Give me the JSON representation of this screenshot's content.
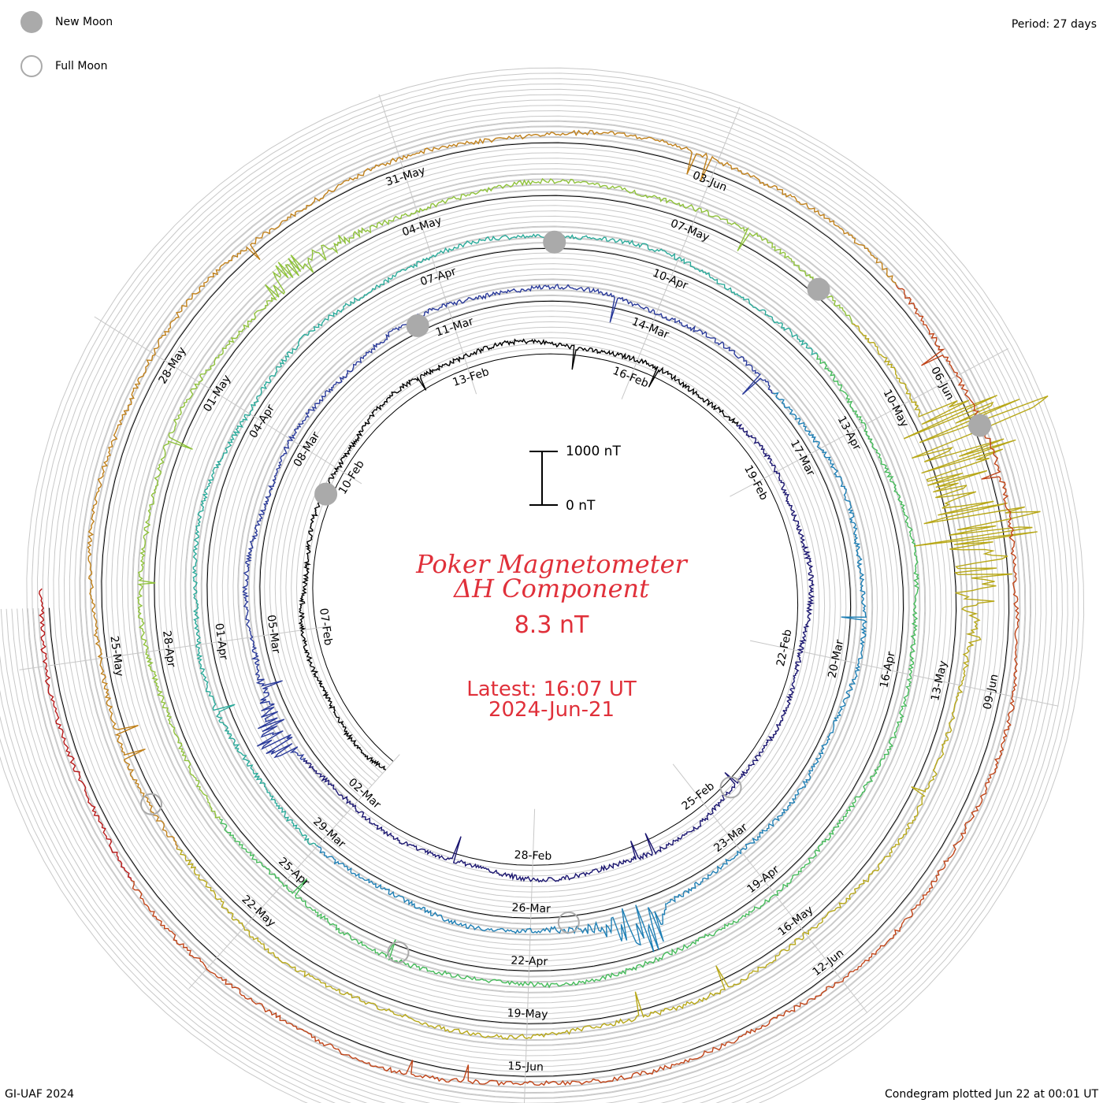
{
  "header": {
    "period": "Period: 27 days",
    "legend": [
      {
        "label": "New Moon",
        "fill": "#aaaaaa",
        "stroke": "#aaaaaa"
      },
      {
        "label": "Full Moon",
        "fill": "#ffffff",
        "stroke": "#aaaaaa"
      }
    ]
  },
  "footer": {
    "credit": "GI-UAF 2024",
    "plotted": "Condegram plotted Jun 22 at 00:01 UT"
  },
  "center": {
    "title_line1": "Poker Magnetometer",
    "title_line2": "ΔH Component",
    "value": "8.3 nT",
    "latest_line1": "Latest: 16:07 UT",
    "latest_line2": "2024-Jun-21",
    "scale_top": "1000 nT",
    "scale_bottom": "0 nT"
  },
  "chart_data": {
    "type": "line",
    "title": "Poker Magnetometer ΔH Component",
    "period_days": 27,
    "start_date": "2024-02-04",
    "end_date": "2024-06-21",
    "scale_nT": [
      0,
      1000
    ],
    "date_labels": [
      "07-Feb",
      "10-Feb",
      "13-Feb",
      "16-Feb",
      "19-Feb",
      "22-Feb",
      "25-Feb",
      "28-Feb",
      "02-Mar",
      "05-Mar",
      "08-Mar",
      "11-Mar",
      "14-Mar",
      "17-Mar",
      "20-Mar",
      "23-Mar",
      "26-Mar",
      "29-Mar",
      "01-Apr",
      "04-Apr",
      "07-Apr",
      "10-Apr",
      "13-Apr",
      "16-Apr",
      "19-Apr",
      "22-Apr",
      "25-Apr",
      "28-Apr",
      "01-May",
      "04-May",
      "07-May",
      "10-May",
      "13-May",
      "16-May",
      "19-May",
      "22-May",
      "25-May",
      "28-May",
      "31-May",
      "03-Jun",
      "06-Jun",
      "09-Jun",
      "12-Jun",
      "15-Jun"
    ],
    "new_moons": [
      "2024-02-09",
      "2024-03-10",
      "2024-04-08",
      "2024-05-08",
      "2024-06-06"
    ],
    "full_moons": [
      "2024-02-24",
      "2024-03-25",
      "2024-04-23",
      "2024-05-23"
    ],
    "colors": [
      "#000000",
      "#1a1570",
      "#2a3a9a",
      "#1e7fb5",
      "#2aaa9a",
      "#45bb5a",
      "#8fc23a",
      "#b8a818",
      "#c0801a",
      "#c04418",
      "#b81818"
    ],
    "storms": [
      {
        "date": "2024-03-03",
        "peak_nT": 450
      },
      {
        "date": "2024-03-24",
        "peak_nT": 600
      },
      {
        "date": "2024-05-02",
        "peak_nT": 400
      },
      {
        "date": "2024-05-10",
        "peak_nT": 1800
      },
      {
        "date": "2024-05-11",
        "peak_nT": 1500
      }
    ]
  }
}
